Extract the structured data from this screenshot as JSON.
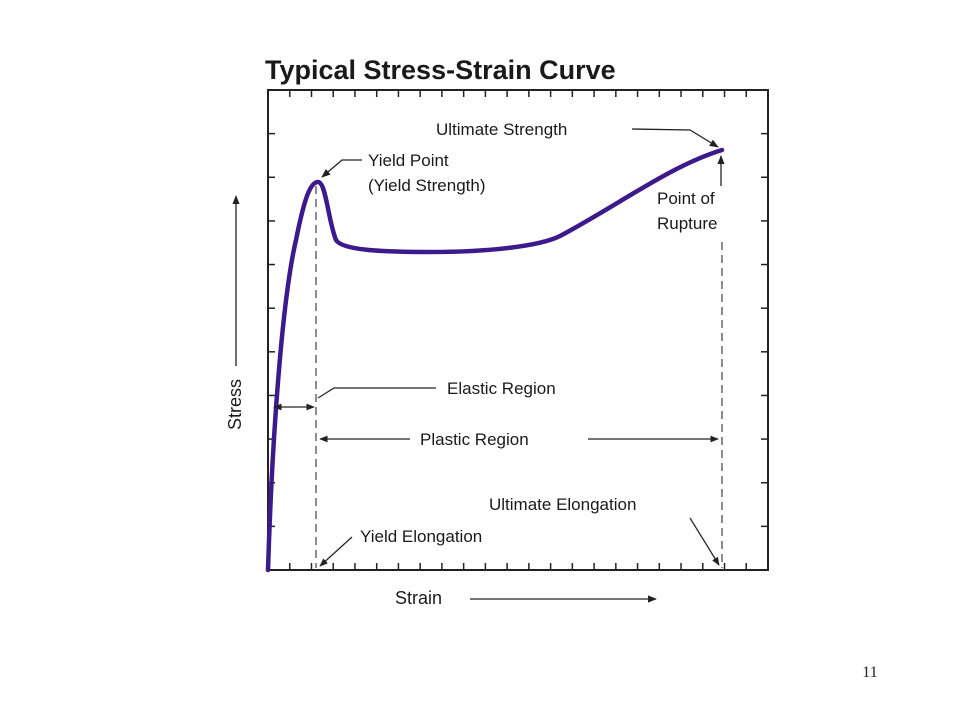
{
  "diagram": {
    "title": "Typical Stress-Strain Curve",
    "labels": {
      "ultimate_strength": "Ultimate Strength",
      "yield_point_line1": "Yield Point",
      "yield_point_line2": "(Yield Strength)",
      "point_of_rupture_line1": "Point of",
      "point_of_rupture_line2": "Rupture",
      "elastic_region": "Elastic Region",
      "plastic_region": "Plastic Region",
      "ultimate_elongation": "Ultimate Elongation",
      "yield_elongation": "Yield Elongation",
      "x_axis": "Strain",
      "y_axis": "Stress"
    },
    "colors": {
      "curve": "#3d1a8c",
      "frame": "#222222",
      "guides": "#444444"
    }
  },
  "page": {
    "number": "11"
  }
}
